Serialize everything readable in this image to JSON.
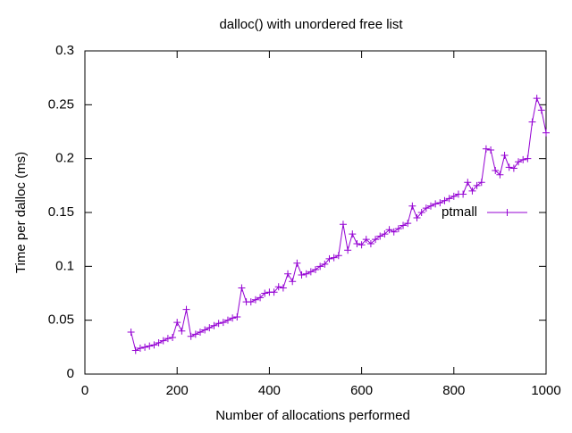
{
  "chart_data": {
    "type": "line",
    "title": "dalloc() with unordered free list",
    "x_label": "Number of allocations performed",
    "y_label": "Time per dalloc (ms)",
    "x": [
      100,
      110,
      120,
      130,
      140,
      150,
      160,
      170,
      180,
      190,
      200,
      210,
      220,
      230,
      240,
      250,
      260,
      270,
      280,
      290,
      300,
      310,
      320,
      330,
      340,
      350,
      360,
      370,
      380,
      390,
      400,
      410,
      420,
      430,
      440,
      450,
      460,
      470,
      480,
      490,
      500,
      510,
      520,
      530,
      540,
      550,
      560,
      570,
      580,
      590,
      600,
      610,
      620,
      630,
      640,
      650,
      660,
      670,
      680,
      690,
      700,
      710,
      720,
      730,
      740,
      750,
      760,
      770,
      780,
      790,
      800,
      810,
      820,
      830,
      840,
      850,
      860,
      870,
      880,
      890,
      900,
      910,
      920,
      930,
      940,
      950,
      960,
      970,
      980,
      990,
      1000
    ],
    "series": [
      {
        "name": "ptmall",
        "color": "#9400d3",
        "values": [
          0.039,
          0.022,
          0.024,
          0.025,
          0.026,
          0.027,
          0.029,
          0.031,
          0.033,
          0.034,
          0.048,
          0.04,
          0.06,
          0.035,
          0.037,
          0.039,
          0.041,
          0.043,
          0.045,
          0.047,
          0.048,
          0.05,
          0.052,
          0.053,
          0.08,
          0.067,
          0.067,
          0.069,
          0.071,
          0.075,
          0.076,
          0.076,
          0.081,
          0.08,
          0.093,
          0.086,
          0.103,
          0.092,
          0.093,
          0.095,
          0.097,
          0.1,
          0.102,
          0.107,
          0.108,
          0.11,
          0.139,
          0.115,
          0.13,
          0.121,
          0.12,
          0.125,
          0.121,
          0.125,
          0.128,
          0.13,
          0.134,
          0.132,
          0.135,
          0.138,
          0.14,
          0.156,
          0.145,
          0.15,
          0.154,
          0.156,
          0.158,
          0.159,
          0.161,
          0.163,
          0.165,
          0.167,
          0.167,
          0.178,
          0.17,
          0.175,
          0.178,
          0.209,
          0.208,
          0.189,
          0.185,
          0.203,
          0.192,
          0.191,
          0.197,
          0.199,
          0.2,
          0.234,
          0.256,
          0.245,
          0.224
        ]
      }
    ],
    "xlim": [
      0,
      1000
    ],
    "xticks": [
      0,
      200,
      400,
      600,
      800,
      1000
    ],
    "ylim": [
      0,
      0.3
    ],
    "yticks": [
      0,
      0.05,
      0.1,
      0.15,
      0.2,
      0.25,
      0.3
    ],
    "legend": "right"
  }
}
